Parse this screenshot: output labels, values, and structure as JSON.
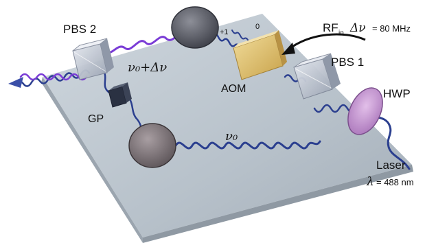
{
  "labels": {
    "pbs1": "PBS 1",
    "pbs2": "PBS 2",
    "aom": "AOM",
    "hwp": "HWP",
    "gp": "GP",
    "laser": "Laser",
    "wavelength_symbol": "λ",
    "wavelength_value": "= 488 nm",
    "rf_main": "RF",
    "rf_sub": "in",
    "rf_delta": "Δν",
    "rf_value": "= 80 MHz",
    "order_plus": "+1",
    "order_zero": "0",
    "beam_shifted": "ν₀+Δν",
    "beam_base": "ν₀"
  },
  "colors": {
    "table_top": "#b9c3cc",
    "table_edge": "#8a949e",
    "beam_base": "#2b3f8f",
    "beam_shifted": "#7a3cd6",
    "aom_body": "#e1c16b",
    "hwp": "#c89ad8",
    "mirror": "#5b5e68",
    "cube": "#c6ccd8"
  }
}
